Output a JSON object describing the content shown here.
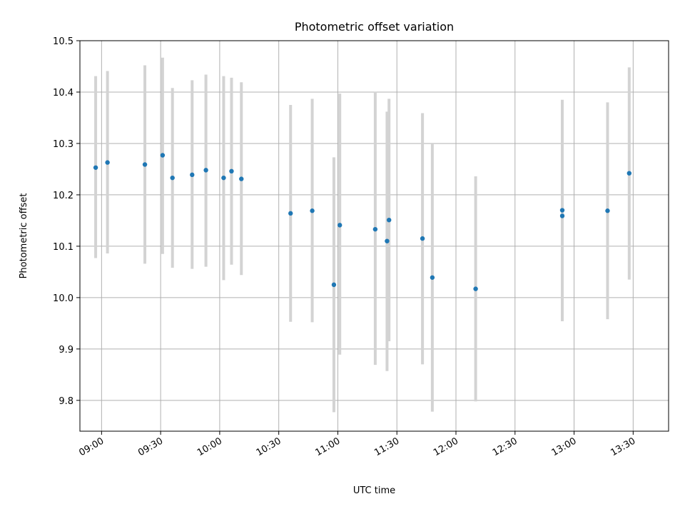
{
  "chart_data": {
    "type": "scatter",
    "title": "Photometric offset variation",
    "xlabel": "UTC time",
    "ylabel": "Photometric offset",
    "xlim": [
      "08:49",
      "13:48"
    ],
    "ylim": [
      9.74,
      10.5
    ],
    "x_ticks": [
      "09:00",
      "09:30",
      "10:00",
      "10:30",
      "11:00",
      "11:30",
      "12:00",
      "12:30",
      "13:00",
      "13:30"
    ],
    "y_ticks": [
      "9.8",
      "9.9",
      "10.0",
      "10.1",
      "10.2",
      "10.3",
      "10.4",
      "10.5"
    ],
    "grid": true,
    "marker_color": "#1f77b4",
    "errorbar_color": "#d3d3d3",
    "points": [
      {
        "x": "08:57",
        "y": 10.253,
        "y_low": 10.077,
        "y_high": 10.431
      },
      {
        "x": "09:03",
        "y": 10.263,
        "y_low": 10.086,
        "y_high": 10.441
      },
      {
        "x": "09:22",
        "y": 10.259,
        "y_low": 10.066,
        "y_high": 10.452
      },
      {
        "x": "09:31",
        "y": 10.277,
        "y_low": 10.085,
        "y_high": 10.467
      },
      {
        "x": "09:36",
        "y": 10.233,
        "y_low": 10.058,
        "y_high": 10.408
      },
      {
        "x": "09:46",
        "y": 10.239,
        "y_low": 10.056,
        "y_high": 10.423
      },
      {
        "x": "09:53",
        "y": 10.248,
        "y_low": 10.06,
        "y_high": 10.434
      },
      {
        "x": "10:02",
        "y": 10.233,
        "y_low": 10.034,
        "y_high": 10.431
      },
      {
        "x": "10:06",
        "y": 10.246,
        "y_low": 10.064,
        "y_high": 10.428
      },
      {
        "x": "10:11",
        "y": 10.231,
        "y_low": 10.044,
        "y_high": 10.419
      },
      {
        "x": "10:36",
        "y": 10.164,
        "y_low": 9.953,
        "y_high": 10.375
      },
      {
        "x": "10:47",
        "y": 10.169,
        "y_low": 9.952,
        "y_high": 10.387
      },
      {
        "x": "10:58",
        "y": 10.025,
        "y_low": 9.777,
        "y_high": 10.273
      },
      {
        "x": "11:01",
        "y": 10.141,
        "y_low": 9.889,
        "y_high": 10.397
      },
      {
        "x": "11:19",
        "y": 10.133,
        "y_low": 9.869,
        "y_high": 10.401
      },
      {
        "x": "11:25",
        "y": 10.11,
        "y_low": 9.857,
        "y_high": 10.362
      },
      {
        "x": "11:26",
        "y": 10.151,
        "y_low": 9.915,
        "y_high": 10.387
      },
      {
        "x": "11:43",
        "y": 10.115,
        "y_low": 9.87,
        "y_high": 10.359
      },
      {
        "x": "11:48",
        "y": 10.039,
        "y_low": 9.778,
        "y_high": 10.3
      },
      {
        "x": "12:10",
        "y": 10.017,
        "y_low": 9.798,
        "y_high": 10.236
      },
      {
        "x": "12:54",
        "y": 10.17,
        "y_low": 9.954,
        "y_high": 10.385
      },
      {
        "x": "12:54",
        "y": 10.159,
        "y_low": 9.96,
        "y_high": 10.362
      },
      {
        "x": "13:17",
        "y": 10.169,
        "y_low": 9.958,
        "y_high": 10.38
      },
      {
        "x": "13:28",
        "y": 10.242,
        "y_low": 10.035,
        "y_high": 10.448
      }
    ]
  }
}
